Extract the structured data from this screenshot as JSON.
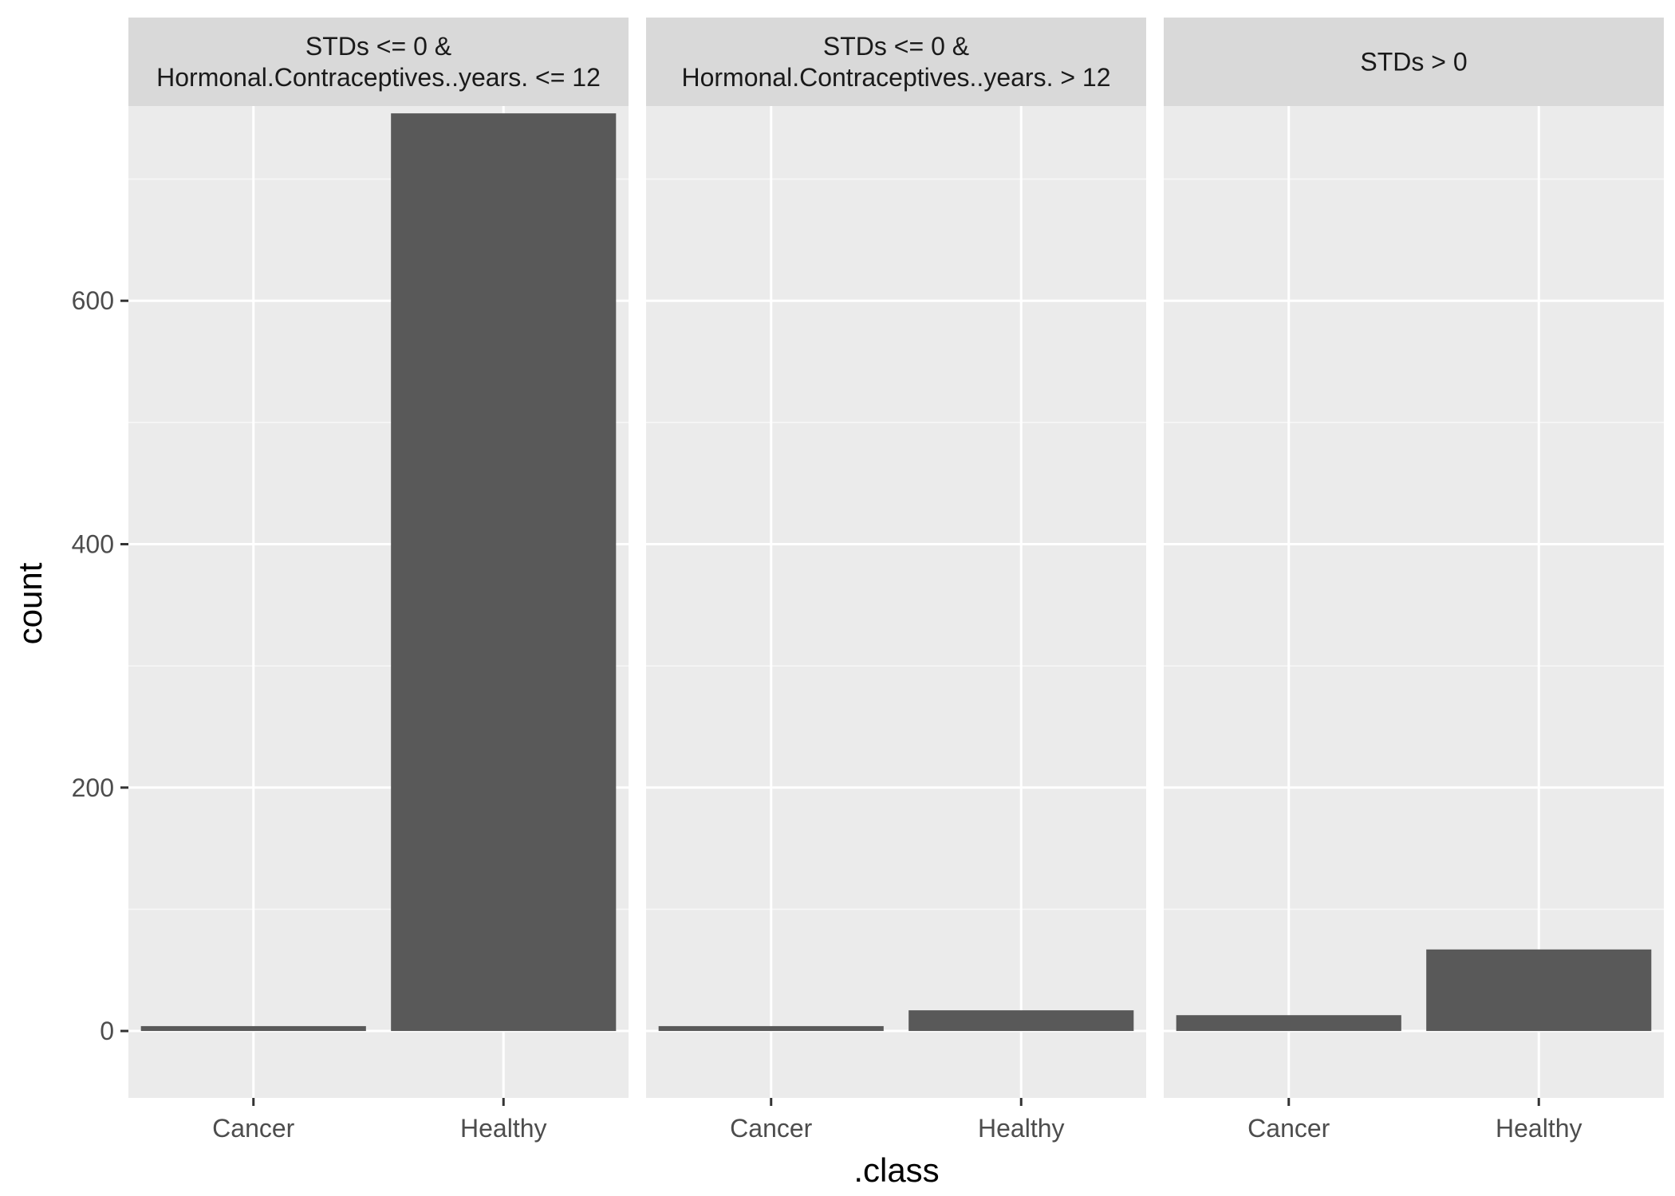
{
  "chart_data": {
    "type": "bar",
    "title": "",
    "xlabel": ".class",
    "ylabel": "count",
    "ylim": [
      -55,
      760
    ],
    "y_ticks": [
      0,
      200,
      400,
      600
    ],
    "y_tick_labels": [
      "0",
      "200",
      "400",
      "600"
    ],
    "grid": true,
    "categories": [
      "Cancer",
      "Healthy"
    ],
    "facets": [
      {
        "strip": [
          "STDs <= 0 &",
          "Hormonal.Contraceptives..years. <= 12"
        ],
        "values": [
          4,
          754
        ]
      },
      {
        "strip": [
          "STDs <= 0 &",
          "Hormonal.Contraceptives..years. > 12"
        ],
        "values": [
          4,
          17
        ]
      },
      {
        "strip": [
          "STDs > 0"
        ],
        "values": [
          13,
          67
        ]
      }
    ]
  }
}
